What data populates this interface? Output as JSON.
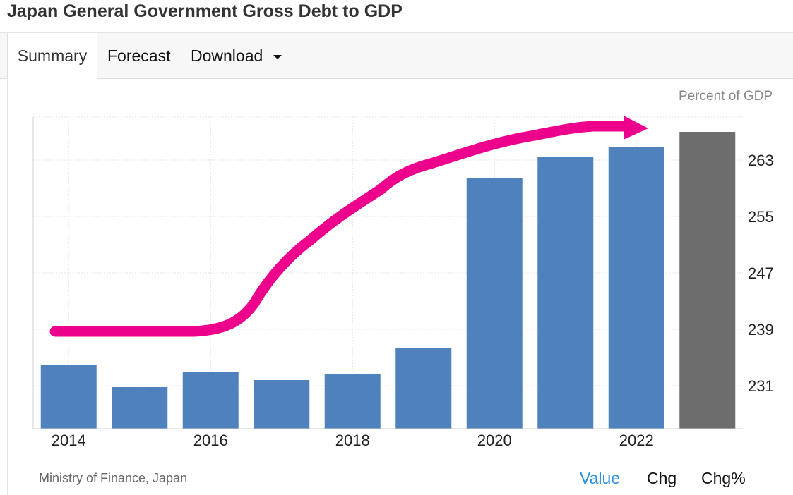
{
  "header": {
    "title": "Japan General Government Gross Debt to GDP"
  },
  "tabs": [
    {
      "label": "Summary",
      "active": true
    },
    {
      "label": "Forecast"
    },
    {
      "label": "Download",
      "has_dropdown": true
    }
  ],
  "footer": {
    "source": "Ministry of Finance, Japan",
    "view_tabs": [
      {
        "label": "Value",
        "active": true
      },
      {
        "label": "Chg"
      },
      {
        "label": "Chg%"
      }
    ]
  },
  "colors": {
    "bar": "#4f81bd",
    "bar_forecast": "#6d6d6d",
    "arrow": "#ec008c",
    "active_tab_text": "#2a8fde"
  },
  "chart_data": {
    "type": "bar",
    "unit_label": "Percent of GDP",
    "categories": [
      "2014",
      "2015",
      "2016",
      "2017",
      "2018",
      "2019",
      "2020",
      "2021",
      "2022",
      "2023"
    ],
    "x_tick_labels": [
      "2014",
      "",
      "2016",
      "",
      "2018",
      "",
      "2020",
      "",
      "2022",
      ""
    ],
    "values": [
      234.0,
      230.8,
      232.9,
      231.8,
      232.7,
      236.4,
      260.4,
      263.4,
      264.9,
      267.0
    ],
    "forecast_from_index": 9,
    "y_ticks": [
      231,
      239,
      247,
      255,
      263
    ],
    "ylim": [
      224.9,
      269.1
    ],
    "y_axis_side": "right",
    "grid": true,
    "annotation": "hand-drawn magenta arrow rising left to right above the bars"
  }
}
